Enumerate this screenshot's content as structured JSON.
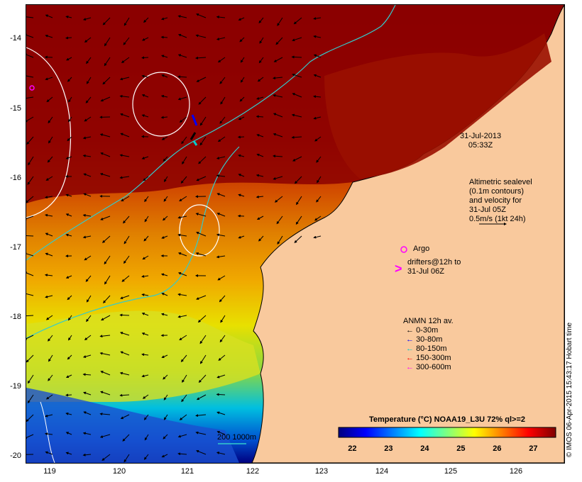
{
  "map": {
    "lat_ticks": [
      "-14",
      "-15",
      "-16",
      "-17",
      "-18",
      "-19",
      "-20"
    ],
    "lon_ticks": [
      "119",
      "120",
      "121",
      "122",
      "123",
      "124",
      "125",
      "126"
    ],
    "timestamp_date": "31-Jul-2013",
    "timestamp_time": "05:33Z",
    "altimetric_lines": [
      "Altimetric sealevel",
      "(0.1m contours)",
      "and velocity for",
      "31-Jul 05Z",
      "0.5m/s (1kt 24h)"
    ],
    "argo_label": "Argo",
    "drifters_lines": [
      "drifters@12h to",
      "31-Jul 06Z"
    ],
    "scale_label": "200  1000m",
    "credit": "© IMOS 06-Apr-2015 15:43:17 Hobart time"
  },
  "legend": {
    "title": "ANMN 12h av.",
    "items": [
      {
        "label": "0-30m",
        "color": "#000000"
      },
      {
        "label": "30-80m",
        "color": "#0000ff"
      },
      {
        "label": "80-150m",
        "color": "#00cccc"
      },
      {
        "label": "150-300m",
        "color": "#ff0000"
      },
      {
        "label": "300-600m",
        "color": "#ff00ff"
      }
    ]
  },
  "colorbar": {
    "title": "Temperature (°C) NOAA19_L3U 72% ql>=2",
    "ticks": [
      "22",
      "23",
      "24",
      "25",
      "26",
      "27"
    ],
    "range": [
      21.6,
      27.6
    ],
    "colors": [
      "#00007f",
      "#0000ff",
      "#007fff",
      "#00ffff",
      "#7fff7f",
      "#ffff00",
      "#ff7f00",
      "#ff0000",
      "#7f0000"
    ]
  },
  "colors": {
    "land": "#f9c99d",
    "shelf_contour": "#33cccc",
    "sealevel_contour": "#ffffff",
    "argo_marker": "#ff00ff"
  }
}
